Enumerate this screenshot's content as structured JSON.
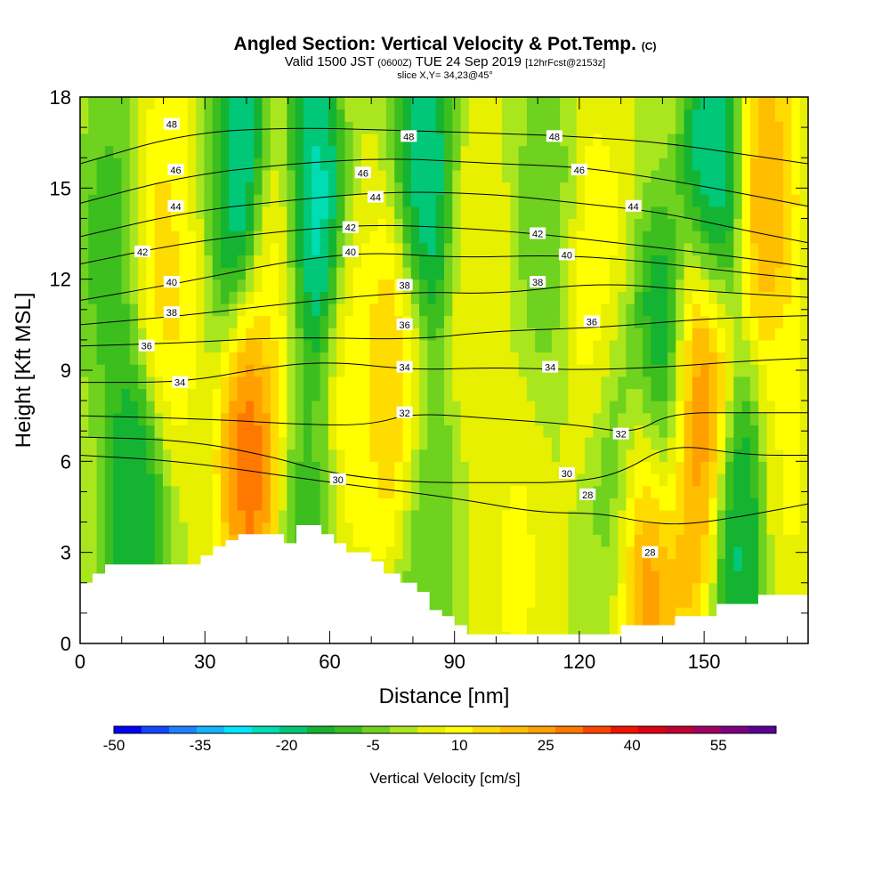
{
  "header": {
    "title": "Angled Section: Vertical Velocity & Pot.Temp.",
    "title_mark": "(C)",
    "valid_prefix": "Valid 1500 JST",
    "valid_utc": "(0600Z)",
    "valid_date": "TUE 24 Sep 2019",
    "forecast": "[12hrFcst@2153z]",
    "slice": "slice X,Y= 34,23@45°"
  },
  "chart_data": {
    "type": "heatmap",
    "xlabel": "Distance [nm]",
    "ylabel": "Height [Kft MSL]",
    "xlim": [
      0,
      175
    ],
    "ylim": [
      0,
      18
    ],
    "x_ticks": [
      0,
      30,
      60,
      90,
      120,
      150
    ],
    "y_ticks": [
      0,
      3,
      6,
      9,
      12,
      15,
      18
    ],
    "x_minor_step": 10,
    "y_minor_step": 1,
    "colorbar": {
      "label": "Vertical Velocity [cm/s]",
      "min": -50,
      "max": 60,
      "step": 5,
      "tick_labels": [
        -50,
        -35,
        -20,
        -5,
        10,
        25,
        40,
        55
      ],
      "colors": [
        "#0000ff",
        "#1446ff",
        "#1e82ff",
        "#14b4ff",
        "#00e6ff",
        "#00dcb4",
        "#00c878",
        "#14b432",
        "#3cbe1e",
        "#6ed21e",
        "#aae61e",
        "#e6f000",
        "#ffff00",
        "#ffdc00",
        "#ffbe00",
        "#ffa000",
        "#ff7800",
        "#ff4600",
        "#f01400",
        "#dc0014",
        "#be0032",
        "#a00064",
        "#7d0082",
        "#5a0096"
      ]
    },
    "vertical_velocity_cells": [
      {
        "x": 7,
        "y": 13,
        "v": -10
      },
      {
        "x": 13,
        "y": 5,
        "v": -20
      },
      {
        "x": 20,
        "y": 12,
        "v": 20
      },
      {
        "x": 27,
        "y": 15,
        "v": 15
      },
      {
        "x": 33,
        "y": 16,
        "v": -12
      },
      {
        "x": 38,
        "y": 16,
        "v": -30
      },
      {
        "x": 41,
        "y": 6.5,
        "v": 40
      },
      {
        "x": 47,
        "y": 12,
        "v": 15
      },
      {
        "x": 56,
        "y": 14,
        "v": -30
      },
      {
        "x": 55,
        "y": 4,
        "v": -10
      },
      {
        "x": 65,
        "y": 8,
        "v": 15
      },
      {
        "x": 76,
        "y": 8.5,
        "v": 25
      },
      {
        "x": 83,
        "y": 15,
        "v": -25
      },
      {
        "x": 83,
        "y": 4,
        "v": -8
      },
      {
        "x": 95,
        "y": 12,
        "v": 10
      },
      {
        "x": 105,
        "y": 2.5,
        "v": 12
      },
      {
        "x": 112,
        "y": 14,
        "v": -5
      },
      {
        "x": 124,
        "y": 12,
        "v": 15
      },
      {
        "x": 130,
        "y": 6,
        "v": -8
      },
      {
        "x": 136,
        "y": 3.5,
        "v": 40
      },
      {
        "x": 140,
        "y": 8.5,
        "v": -25
      },
      {
        "x": 146,
        "y": 5,
        "v": 28
      },
      {
        "x": 150,
        "y": 8.5,
        "v": 40
      },
      {
        "x": 152,
        "y": 15,
        "v": -28
      },
      {
        "x": 158,
        "y": 4,
        "v": -22
      },
      {
        "x": 165,
        "y": 14.5,
        "v": 28
      },
      {
        "x": 170,
        "y": 6,
        "v": 12
      }
    ],
    "pot_temp_contours": [
      {
        "value": 28,
        "points": [
          [
            0,
            6.2
          ],
          [
            25,
            6.0
          ],
          [
            60,
            5.3
          ],
          [
            90,
            4.8
          ],
          [
            110,
            4.3
          ],
          [
            125,
            4.3
          ],
          [
            135,
            4.0
          ],
          [
            145,
            3.9
          ],
          [
            160,
            4.2
          ],
          [
            175,
            4.6
          ]
        ]
      },
      {
        "value": 30,
        "points": [
          [
            0,
            6.8
          ],
          [
            25,
            6.7
          ],
          [
            45,
            6.2
          ],
          [
            60,
            5.6
          ],
          [
            80,
            5.3
          ],
          [
            100,
            5.3
          ],
          [
            118,
            5.3
          ],
          [
            130,
            5.6
          ],
          [
            142,
            6.6
          ],
          [
            160,
            6.2
          ],
          [
            175,
            6.2
          ]
        ]
      },
      {
        "value": 32,
        "points": [
          [
            0,
            7.5
          ],
          [
            30,
            7.4
          ],
          [
            55,
            7.2
          ],
          [
            70,
            7.2
          ],
          [
            80,
            7.6
          ],
          [
            100,
            7.4
          ],
          [
            120,
            7.2
          ],
          [
            133,
            6.9
          ],
          [
            142,
            7.6
          ],
          [
            160,
            7.6
          ],
          [
            175,
            7.6
          ]
        ]
      },
      {
        "value": 34,
        "points": [
          [
            0,
            8.6
          ],
          [
            25,
            8.6
          ],
          [
            45,
            9.1
          ],
          [
            60,
            9.3
          ],
          [
            80,
            9.0
          ],
          [
            100,
            9.1
          ],
          [
            120,
            9.0
          ],
          [
            140,
            9.1
          ],
          [
            160,
            9.3
          ],
          [
            175,
            9.4
          ]
        ]
      },
      {
        "value": 36,
        "points": [
          [
            0,
            9.8
          ],
          [
            25,
            9.9
          ],
          [
            50,
            10.1
          ],
          [
            80,
            10.0
          ],
          [
            100,
            10.3
          ],
          [
            125,
            10.4
          ],
          [
            150,
            10.7
          ],
          [
            175,
            10.8
          ]
        ]
      },
      {
        "value": 38,
        "points": [
          [
            0,
            10.5
          ],
          [
            25,
            10.8
          ],
          [
            50,
            11.2
          ],
          [
            80,
            11.6
          ],
          [
            100,
            11.5
          ],
          [
            125,
            11.9
          ],
          [
            150,
            11.6
          ],
          [
            175,
            11.4
          ]
        ]
      },
      {
        "value": 40,
        "points": [
          [
            0,
            11.3
          ],
          [
            25,
            11.9
          ],
          [
            50,
            12.6
          ],
          [
            70,
            12.9
          ],
          [
            90,
            12.7
          ],
          [
            115,
            12.8
          ],
          [
            135,
            12.6
          ],
          [
            160,
            12.2
          ],
          [
            175,
            12.0
          ]
        ]
      },
      {
        "value": 42,
        "points": [
          [
            0,
            12.5
          ],
          [
            25,
            13.2
          ],
          [
            50,
            13.6
          ],
          [
            70,
            13.8
          ],
          [
            90,
            13.7
          ],
          [
            110,
            13.5
          ],
          [
            135,
            13.1
          ],
          [
            160,
            12.7
          ],
          [
            175,
            12.4
          ]
        ]
      },
      {
        "value": 44,
        "points": [
          [
            0,
            13.4
          ],
          [
            25,
            14.2
          ],
          [
            50,
            14.6
          ],
          [
            75,
            14.9
          ],
          [
            100,
            14.8
          ],
          [
            120,
            14.5
          ],
          [
            140,
            14.2
          ],
          [
            160,
            13.6
          ],
          [
            175,
            13.2
          ]
        ]
      },
      {
        "value": 46,
        "points": [
          [
            0,
            14.5
          ],
          [
            25,
            15.4
          ],
          [
            50,
            15.8
          ],
          [
            75,
            16.0
          ],
          [
            100,
            15.8
          ],
          [
            120,
            15.7
          ],
          [
            140,
            15.3
          ],
          [
            160,
            14.8
          ],
          [
            175,
            14.4
          ]
        ]
      },
      {
        "value": 48,
        "points": [
          [
            0,
            15.8
          ],
          [
            25,
            16.8
          ],
          [
            50,
            17.0
          ],
          [
            78,
            16.9
          ],
          [
            100,
            16.8
          ],
          [
            120,
            16.7
          ],
          [
            140,
            16.5
          ],
          [
            160,
            16.1
          ],
          [
            175,
            15.8
          ]
        ]
      }
    ],
    "contour_labels": [
      {
        "text": "48",
        "x": 22,
        "y": 17.1
      },
      {
        "text": "46",
        "x": 23,
        "y": 15.6
      },
      {
        "text": "44",
        "x": 23,
        "y": 14.4
      },
      {
        "text": "42",
        "x": 15,
        "y": 12.9
      },
      {
        "text": "40",
        "x": 22,
        "y": 11.9
      },
      {
        "text": "38",
        "x": 22,
        "y": 10.9
      },
      {
        "text": "36",
        "x": 16,
        "y": 9.8
      },
      {
        "text": "34",
        "x": 24,
        "y": 8.6
      },
      {
        "text": "46",
        "x": 68,
        "y": 15.5
      },
      {
        "text": "44",
        "x": 71,
        "y": 14.7
      },
      {
        "text": "42",
        "x": 65,
        "y": 13.7
      },
      {
        "text": "40",
        "x": 65,
        "y": 12.9
      },
      {
        "text": "30",
        "x": 62,
        "y": 5.4
      },
      {
        "text": "48",
        "x": 79,
        "y": 16.7
      },
      {
        "text": "38",
        "x": 78,
        "y": 11.8
      },
      {
        "text": "36",
        "x": 78,
        "y": 10.5
      },
      {
        "text": "34",
        "x": 78,
        "y": 9.1
      },
      {
        "text": "32",
        "x": 78,
        "y": 7.6
      },
      {
        "text": "48",
        "x": 114,
        "y": 16.7
      },
      {
        "text": "46",
        "x": 120,
        "y": 15.6
      },
      {
        "text": "42",
        "x": 110,
        "y": 13.5
      },
      {
        "text": "40",
        "x": 117,
        "y": 12.8
      },
      {
        "text": "38",
        "x": 110,
        "y": 11.9
      },
      {
        "text": "36",
        "x": 123,
        "y": 10.6
      },
      {
        "text": "34",
        "x": 113,
        "y": 9.1
      },
      {
        "text": "30",
        "x": 117,
        "y": 5.6
      },
      {
        "text": "28",
        "x": 122,
        "y": 4.9
      },
      {
        "text": "44",
        "x": 133,
        "y": 14.4
      },
      {
        "text": "32",
        "x": 130,
        "y": 6.9
      },
      {
        "text": "28",
        "x": 137,
        "y": 3.0
      }
    ],
    "terrain_profile": [
      [
        0,
        2
      ],
      [
        3,
        2
      ],
      [
        3,
        2.3
      ],
      [
        6,
        2.3
      ],
      [
        6,
        2.6
      ],
      [
        29,
        2.6
      ],
      [
        29,
        2.9
      ],
      [
        32,
        2.9
      ],
      [
        32,
        3.2
      ],
      [
        35,
        3.2
      ],
      [
        35,
        3.4
      ],
      [
        38,
        3.4
      ],
      [
        38,
        3.6
      ],
      [
        49,
        3.6
      ],
      [
        49,
        3.3
      ],
      [
        52,
        3.3
      ],
      [
        52,
        3.9
      ],
      [
        58,
        3.9
      ],
      [
        58,
        3.6
      ],
      [
        61,
        3.6
      ],
      [
        61,
        3.3
      ],
      [
        64,
        3.3
      ],
      [
        64,
        3.0
      ],
      [
        70,
        3.0
      ],
      [
        70,
        2.7
      ],
      [
        73,
        2.7
      ],
      [
        73,
        2.3
      ],
      [
        77,
        2.3
      ],
      [
        77,
        2.0
      ],
      [
        81,
        2.0
      ],
      [
        81,
        1.7
      ],
      [
        84,
        1.7
      ],
      [
        84,
        1.1
      ],
      [
        87,
        1.1
      ],
      [
        87,
        0.9
      ],
      [
        90,
        0.9
      ],
      [
        90,
        0.6
      ],
      [
        93,
        0.6
      ],
      [
        93,
        0.3
      ],
      [
        130,
        0.3
      ],
      [
        130,
        0.6
      ],
      [
        143,
        0.6
      ],
      [
        143,
        0.9
      ],
      [
        153,
        0.9
      ],
      [
        153,
        1.3
      ],
      [
        163,
        1.3
      ],
      [
        163,
        1.6
      ],
      [
        175,
        1.6
      ]
    ]
  }
}
